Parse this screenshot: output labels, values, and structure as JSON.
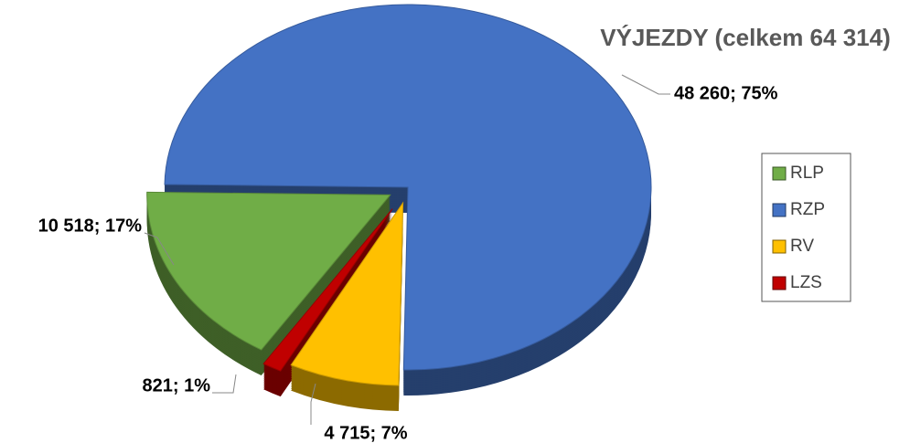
{
  "chart_data": {
    "type": "pie",
    "title": "VÝJEZDY (celkem 64 314)",
    "categories": [
      "RLP",
      "RZP",
      "RV",
      "LZS"
    ],
    "values": [
      10518,
      48260,
      4715,
      821
    ],
    "value_labels": [
      "10 518; 17%",
      "48 260; 75%",
      "4 715; 7%",
      "821; 1%"
    ],
    "colors": [
      "#70ad47",
      "#4472c4",
      "#ffc000",
      "#c00000"
    ],
    "legend": "right"
  }
}
